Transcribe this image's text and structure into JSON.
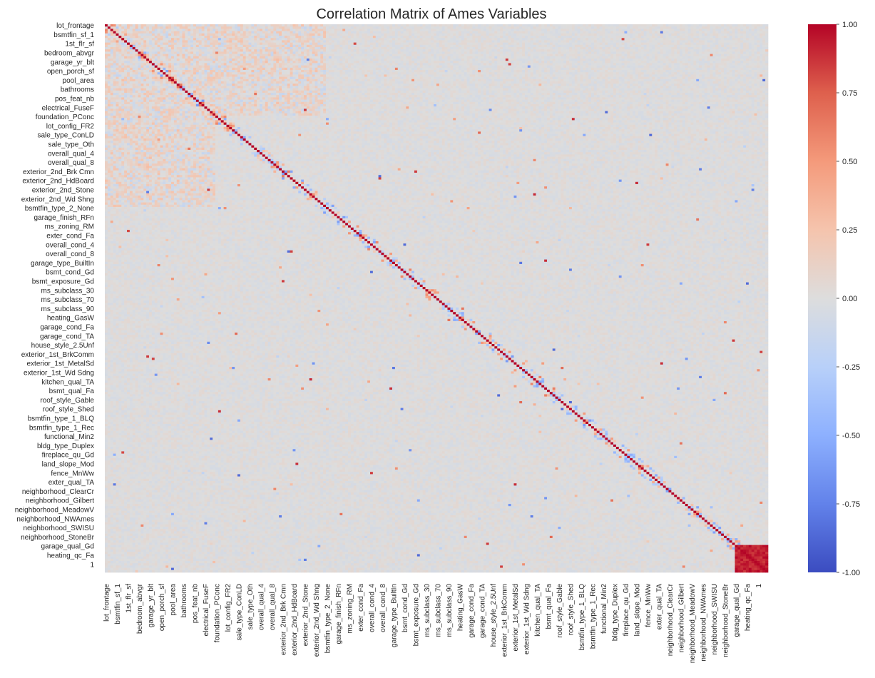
{
  "chart_data": {
    "type": "heatmap",
    "title": "Correlation Matrix of Ames Variables",
    "xlabel": "",
    "ylabel": "",
    "grid": false,
    "colormap": "coolwarm",
    "value_range": [
      -1.0,
      1.0
    ],
    "colorbar": {
      "placement": "right",
      "ticks": [
        1.0,
        0.75,
        0.5,
        0.25,
        0.0,
        -0.25,
        -0.5,
        -0.75,
        -1.0
      ],
      "tick_labels": [
        "1.00",
        "0.75",
        "0.50",
        "0.25",
        "0.00",
        "-0.25",
        "-0.50",
        "-0.75",
        "-1.00"
      ]
    },
    "n_variables": 240,
    "labeled_variables": [
      "lot_frontage",
      "bsmtfin_sf_1",
      "1st_flr_sf",
      "bedroom_abvgr",
      "garage_yr_blt",
      "open_porch_sf",
      "pool_area",
      "bathrooms",
      "pos_feat_nb",
      "electrical_FuseF",
      "foundation_PConc",
      "lot_config_FR2",
      "sale_type_ConLD",
      "sale_type_Oth",
      "overall_qual_4",
      "overall_qual_8",
      "exterior_2nd_Brk Cmn",
      "exterior_2nd_HdBoard",
      "exterior_2nd_Stone",
      "exterior_2nd_Wd Shng",
      "bsmtfin_type_2_None",
      "garage_finish_RFn",
      "ms_zoning_RM",
      "exter_cond_Fa",
      "overall_cond_4",
      "overall_cond_8",
      "garage_type_BuiltIn",
      "bsmt_cond_Gd",
      "bsmt_exposure_Gd",
      "ms_subclass_30",
      "ms_subclass_70",
      "ms_subclass_90",
      "heating_GasW",
      "garage_cond_Fa",
      "garage_cond_TA",
      "house_style_2.5Unf",
      "exterior_1st_BrkComm",
      "exterior_1st_MetalSd",
      "exterior_1st_Wd Sdng",
      "kitchen_qual_TA",
      "bsmt_qual_Fa",
      "roof_style_Gable",
      "roof_style_Shed",
      "bsmtfin_type_1_BLQ",
      "bsmtfin_type_1_Rec",
      "functional_Min2",
      "bldg_type_Duplex",
      "fireplace_qu_Gd",
      "land_slope_Mod",
      "fence_MnWw",
      "exter_qual_TA",
      "neighborhood_ClearCr",
      "neighborhood_Gilbert",
      "neighborhood_MeadowV",
      "neighborhood_NWAmes",
      "neighborhood_SWISU",
      "neighborhood_StoneBr",
      "garage_qual_Gd",
      "heating_qc_Fa",
      "1"
    ],
    "label_step": 4,
    "notable_correlations": [
      {
        "i": 230,
        "j": 239,
        "value": 0.95
      },
      {
        "i": 96,
        "j": 108,
        "value": -0.85
      },
      {
        "i": 74,
        "j": 155,
        "value": 0.9
      },
      {
        "i": 104,
        "j": 150,
        "value": -0.8
      },
      {
        "i": 12,
        "j": 40,
        "value": 0.6
      },
      {
        "i": 150,
        "j": 165,
        "value": 0.7
      }
    ]
  }
}
